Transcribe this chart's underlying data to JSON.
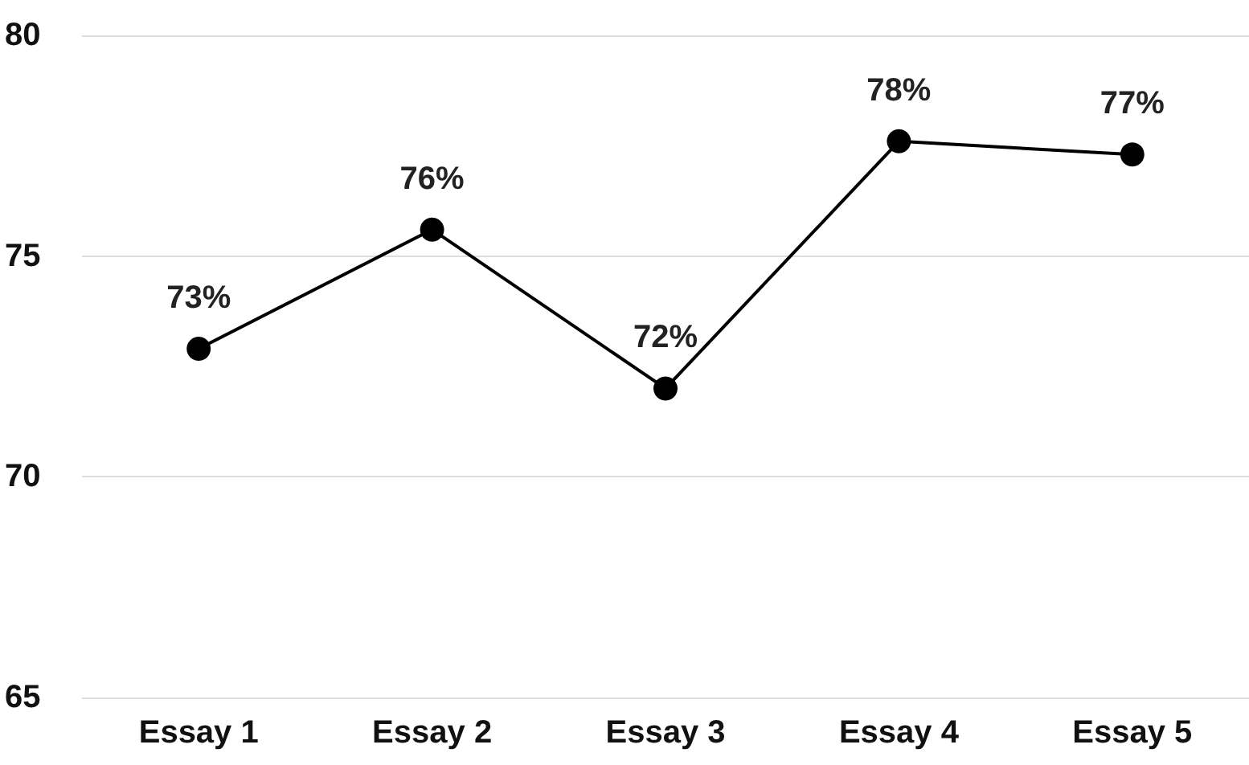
{
  "chart_data": {
    "type": "line",
    "categories": [
      "Essay 1",
      "Essay 2",
      "Essay 3",
      "Essay 4",
      "Essay 5"
    ],
    "series": [
      {
        "color": "#000000",
        "values": [
          72.9,
          75.6,
          72.0,
          77.6,
          77.3
        ],
        "value_labels": [
          "73%",
          "76%",
          "72%",
          "78%",
          "77%"
        ]
      }
    ],
    "ylim": [
      65,
      80
    ],
    "yticks": [
      65,
      70,
      75,
      80
    ],
    "grid": "y",
    "marker": "circle",
    "line_style": "solid"
  }
}
